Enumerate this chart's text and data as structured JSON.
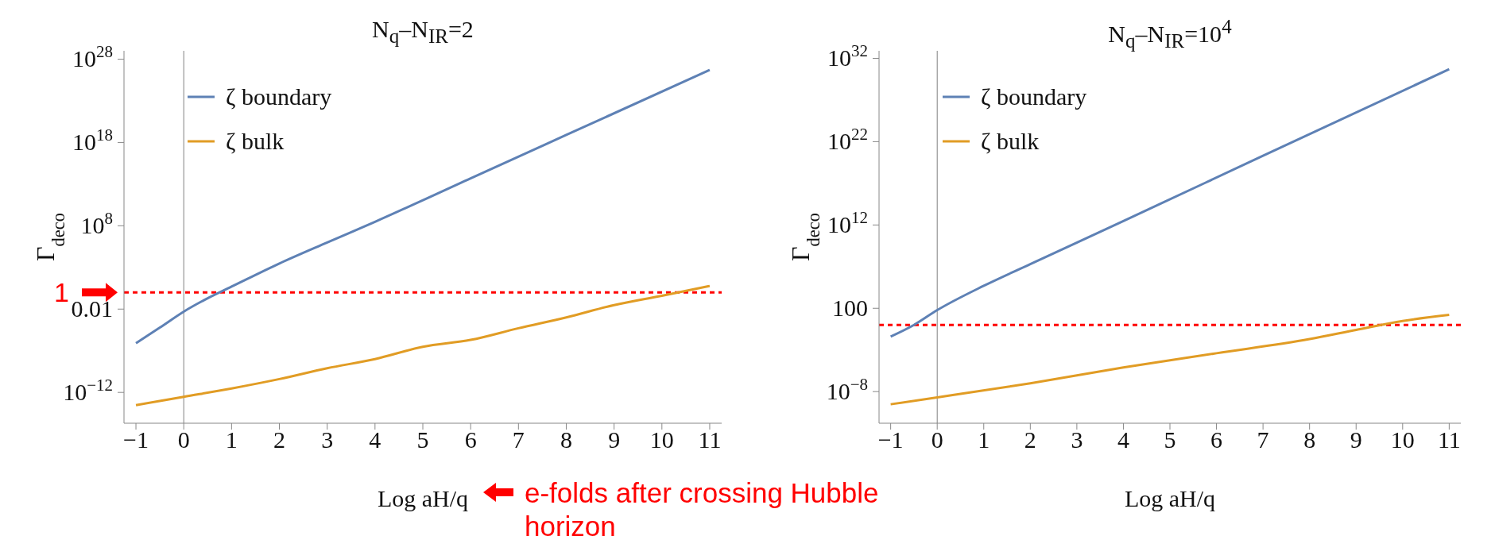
{
  "chart_data": [
    {
      "type": "line",
      "title": "N$_{q}$–N$_{IR}$=2",
      "xlabel": "Log aH/q",
      "ylabel": "Γ$_{deco}$",
      "log": "y",
      "grid": false,
      "legend": "top left",
      "marker": "none",
      "line_style": "solid",
      "xlim": [
        -1.25,
        11.25
      ],
      "xticks": [
        {
          "value": -1,
          "label": "−1"
        },
        0,
        1,
        2,
        3,
        4,
        5,
        6,
        7,
        8,
        9,
        10,
        11
      ],
      "ylim": [
        2e-16,
        1e+29
      ],
      "yticks": [
        {
          "value": 1e-12,
          "label": "10$^{−12}$"
        },
        0.01,
        {
          "value": 100000000.0,
          "label": "10$^{8}$"
        },
        {
          "value": 1e+18,
          "label": "10$^{18}$"
        },
        {
          "value": 1e+28,
          "label": "10$^{28}$"
        }
      ],
      "ref_lines": [
        {
          "axis": "x",
          "value": 0,
          "color": "#808080"
        },
        {
          "axis": "y",
          "value": 1,
          "color": "#ff0000",
          "line_style": "dashed",
          "label": "1"
        }
      ],
      "annotations": [
        "e-folds after crossing Hubble horizon"
      ],
      "series": [
        {
          "name": "ζ boundary",
          "color": "#5e81b5",
          "x": [
            -1,
            -0.5,
            0,
            0.5,
            1,
            2,
            3,
            4,
            6,
            8,
            11
          ],
          "values": [
            8e-07,
            6e-05,
            0.005,
            0.2,
            5,
            3000.0,
            1000000.0,
            300000000.0,
            50000000000000.0,
            8e+18,
            5e+26
          ]
        },
        {
          "name": "ζ bulk",
          "color": "#e19c24",
          "x": [
            -1,
            0,
            1,
            2,
            3,
            4,
            5,
            6,
            7,
            8,
            9,
            10,
            11
          ],
          "values": [
            3e-14,
            3e-13,
            3e-12,
            4e-11,
            8e-10,
            1e-08,
            3e-07,
            2e-06,
            5e-05,
            0.001,
            0.03,
            0.4,
            6
          ]
        }
      ]
    },
    {
      "type": "line",
      "title": "N$_{q}$–N$_{IR}$=10$^{4}$",
      "xlabel": "Log aH/q",
      "ylabel": "Γ$_{deco}$",
      "log": "y",
      "grid": false,
      "legend": "top left",
      "marker": "none",
      "line_style": "solid",
      "xlim": [
        -1.25,
        11.25
      ],
      "xticks": [
        {
          "value": -1,
          "label": "−1"
        },
        0,
        1,
        2,
        3,
        4,
        5,
        6,
        7,
        8,
        9,
        10,
        11
      ],
      "ylim": [
        1.6e-12,
        8e+32
      ],
      "yticks": [
        {
          "value": 1e-08,
          "label": "10$^{−8}$"
        },
        100,
        {
          "value": 1000000000000.0,
          "label": "10$^{12}$"
        },
        {
          "value": 1e+22,
          "label": "10$^{22}$"
        },
        {
          "value": 1e+32,
          "label": "10$^{32}$"
        }
      ],
      "ref_lines": [
        {
          "axis": "x",
          "value": 0,
          "color": "#808080"
        },
        {
          "axis": "y",
          "value": 1,
          "color": "#ff0000",
          "line_style": "dashed"
        }
      ],
      "series": [
        {
          "name": "ζ boundary",
          "color": "#5e81b5",
          "x": [
            -1,
            -0.5,
            0,
            1,
            2,
            4,
            7,
            11
          ],
          "values": [
            0.04,
            1,
            60,
            50000.0,
            20000000.0,
            3000000000000.0,
            2e+20,
            5e+30
          ]
        },
        {
          "name": "ζ bulk",
          "color": "#e19c24",
          "x": [
            -1,
            0,
            2,
            4,
            6,
            8,
            9,
            10,
            11
          ],
          "values": [
            3e-10,
            2e-09,
            1e-07,
            8e-06,
            0.0004,
            0.02,
            0.25,
            3,
            16
          ]
        }
      ]
    }
  ]
}
